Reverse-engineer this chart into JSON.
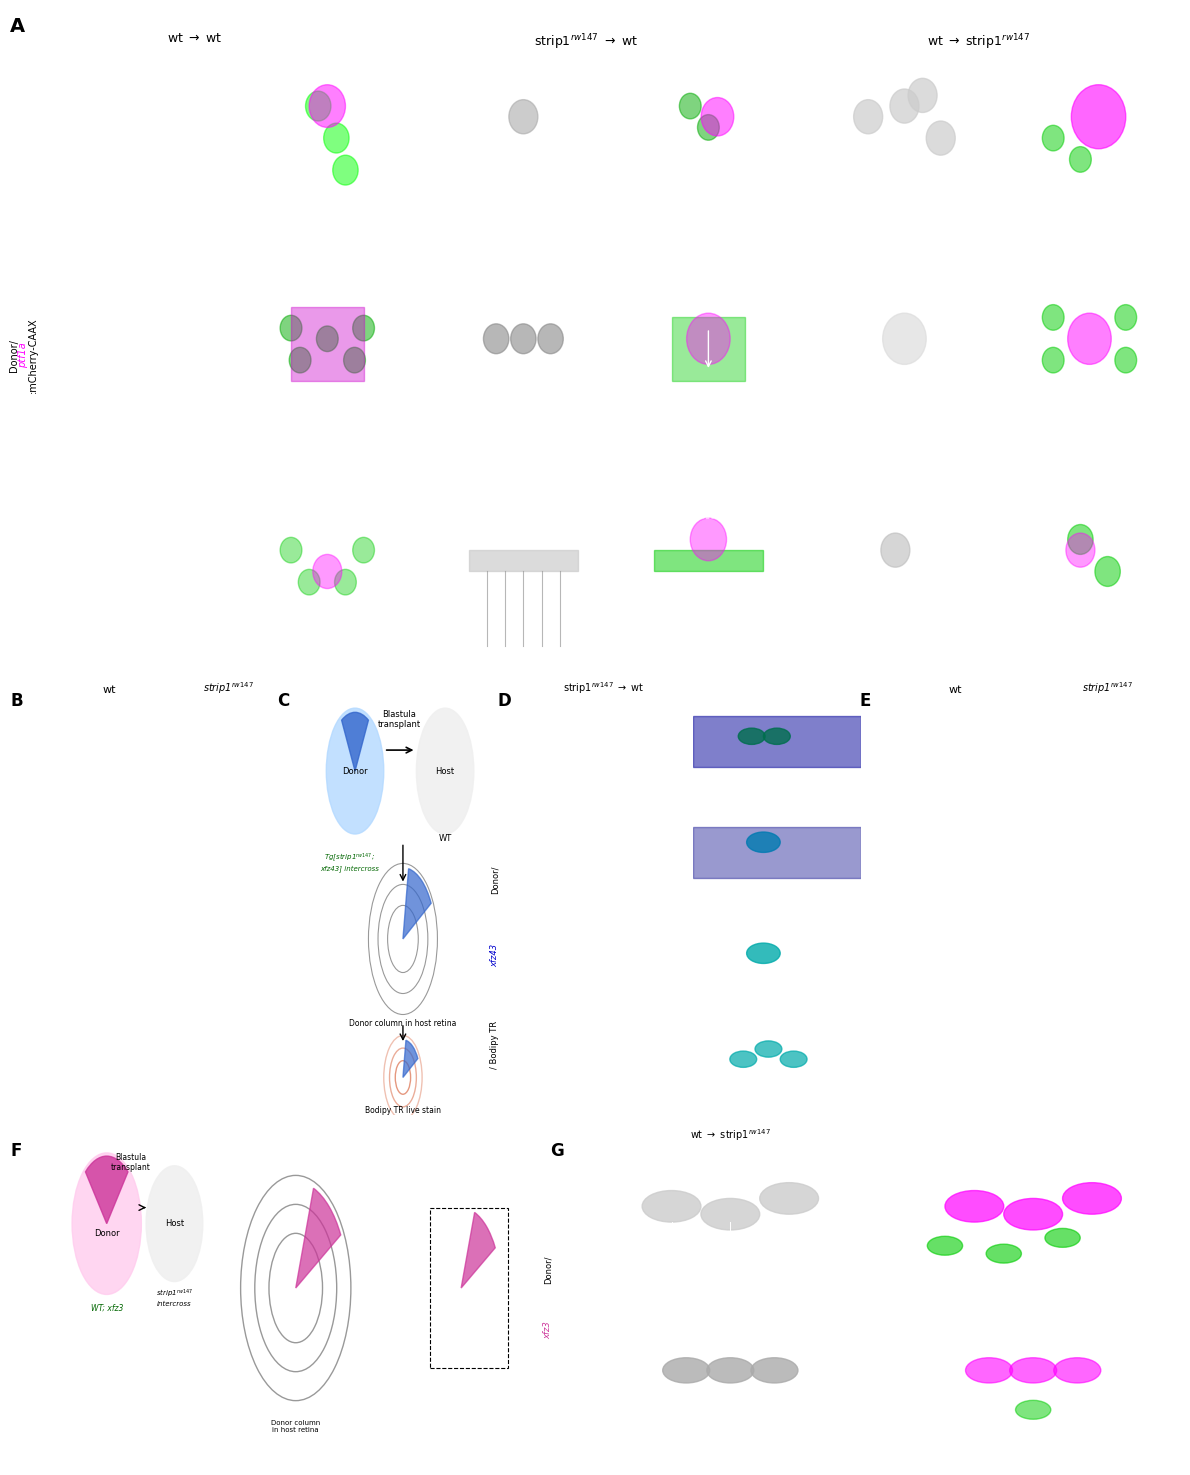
{
  "fig_width": 11.88,
  "fig_height": 15.0,
  "background_color": "#ffffff",
  "panel_A_label": "A",
  "panel_B_label": "B",
  "panel_C_label": "C",
  "panel_D_label": "D",
  "panel_E_label": "E",
  "panel_F_label": "F",
  "panel_G_label": "G",
  "col_headers": [
    "wt → wt",
    "strip1ⁿʷ¹⁴⁷ → wt",
    "wt → strip1ⁿʷ¹⁴⁷"
  ],
  "col_header_A1": "wt",
  "col_header_A2": "strip1$^{rw147}$",
  "col_header_D": "strip1$^{rw147}$ → wt",
  "col_header_E1": "wt",
  "col_header_E2": "strip1$^{rw147}$",
  "row_label_A": "Donor/ ptf1a:mCherry-CAAX",
  "ylabel_D": "Donor/xfz43/ Bodipy TR",
  "ylabel_G": "Donor/xfz3",
  "label_B_xfz43": "xfz43",
  "label_E_xfz3": "xfz3",
  "label_C_donor": "Tg[strip1$^{rw147}$;\nxfz43] intercross",
  "label_C_host": "WT",
  "label_C_donor_col": "Donor column in host retina",
  "label_C_bodipy": "Bodipy TR live stain",
  "label_C_blastula": "Blastula\ntransplant",
  "label_F_blastula": "Blastula\ntransplant",
  "label_F_donor": "WT; xfz3",
  "label_F_host": "strip1$^{rw147}$ intercross",
  "label_F_donor_col": "Donor column\nin host retina",
  "wt_arrow_wt": "wt → wt",
  "strip1_arrow_wt": "strip1$^{rw147}$→ wt",
  "wt_arrow_strip1": "wt → strip1$^{rw147}$"
}
